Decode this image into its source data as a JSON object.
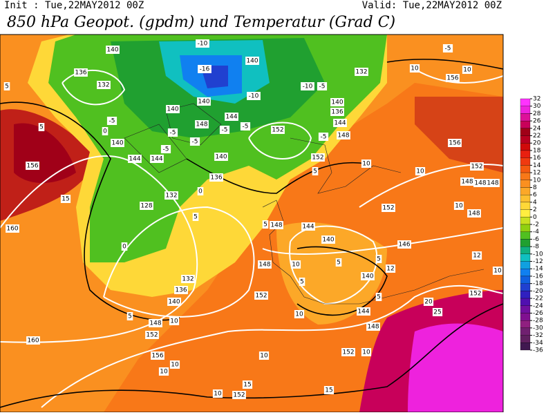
{
  "header": {
    "init": "Init : Tue,22MAY2012 00Z",
    "valid": "Valid: Tue,22MAY2012 00Z",
    "title": "850 hPa Geopot. (gpdm) und Temperatur (Grad C)"
  },
  "legend": {
    "ticks": [
      32,
      30,
      28,
      26,
      24,
      22,
      20,
      18,
      16,
      14,
      12,
      10,
      8,
      6,
      4,
      2,
      0,
      -2,
      -4,
      -6,
      -8,
      -10,
      -12,
      -14,
      -16,
      -18,
      -20,
      -22,
      -24,
      -26,
      -28,
      -30,
      -32,
      -34,
      -36
    ],
    "band_colors": [
      "#ff33ff",
      "#ee22dd",
      "#dd1199",
      "#c8005a",
      "#a00018",
      "#b80020",
      "#d00a0a",
      "#e82010",
      "#f03a10",
      "#f55a10",
      "#f87818",
      "#fa9020",
      "#fca828",
      "#fdc030",
      "#fed838",
      "#ffee40",
      "#c8e020",
      "#90d010",
      "#50c020",
      "#20a030",
      "#10b080",
      "#10c0c0",
      "#10a0e0",
      "#1080f0",
      "#1060e0",
      "#2040d0",
      "#3020c0",
      "#5010b0",
      "#7010a0",
      "#801090",
      "#902080",
      "#702070",
      "#602060",
      "#401850"
    ]
  },
  "map": {
    "isohypse_labels": [
      140,
      136,
      132,
      140,
      140,
      148,
      144,
      140,
      140,
      136,
      144,
      148,
      132,
      152,
      152,
      140,
      144,
      144,
      140,
      136,
      132,
      128,
      156,
      160,
      156,
      156,
      152,
      148,
      148,
      148,
      152,
      148,
      148,
      144,
      140,
      146,
      148,
      140,
      132,
      136,
      140,
      152,
      144,
      148,
      148,
      152,
      160,
      156,
      152,
      152,
      152
    ],
    "isotherm_labels": [
      -10,
      -16,
      -10,
      -10,
      -5,
      -5,
      -5,
      -5,
      -5,
      -5,
      -5,
      -5,
      5,
      5,
      0,
      0,
      0,
      5,
      5,
      10,
      10,
      10,
      10,
      10,
      15,
      5,
      10,
      5,
      5,
      12,
      12,
      10,
      20,
      25,
      10,
      10,
      10,
      10,
      10,
      15,
      15,
      10,
      5,
      5,
      5,
      10,
      -5
    ]
  }
}
